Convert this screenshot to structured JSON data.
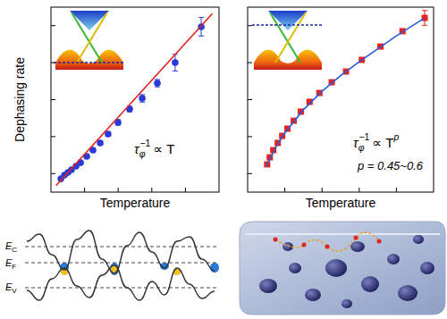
{
  "chart_data": [
    {
      "type": "scatter",
      "y_label": "Dephasing rate",
      "x_label": "Temperature",
      "xlim": [
        0,
        10
      ],
      "ylim": [
        0,
        10
      ],
      "xticks": [
        2,
        4,
        6,
        8
      ],
      "yticks": [
        1,
        3,
        5,
        7,
        9
      ],
      "tick_labels": false,
      "annotations": [
        {
          "symbol": "τ",
          "subscript": "φ",
          "superscript": "−1",
          "relation": "∝ T"
        }
      ],
      "series": [
        {
          "type": "scatter",
          "marker": "circle",
          "color": "#2a3ad8",
          "x": [
            0.59,
            0.8,
            1.01,
            1.22,
            1.49,
            1.76,
            2.13,
            2.5,
            2.93,
            3.4,
            3.99,
            4.68,
            5.43,
            6.33,
            7.39,
            8.94
          ],
          "values": [
            0.72,
            0.92,
            1.06,
            1.21,
            1.4,
            1.59,
            1.93,
            2.27,
            2.66,
            3.14,
            3.77,
            4.49,
            5.07,
            5.89,
            7.0,
            8.94
          ],
          "errors": [
            0.05,
            0.05,
            0.05,
            0.05,
            0.08,
            0.08,
            0.1,
            0.1,
            0.12,
            0.12,
            0.15,
            0.15,
            0.2,
            0.2,
            0.45,
            0.5
          ]
        },
        {
          "type": "line",
          "line_style": "solid",
          "color": "#e0201c",
          "x": [
            0.3,
            9.6
          ],
          "values": [
            0.35,
            9.65
          ]
        }
      ]
    },
    {
      "type": "scatter",
      "x_label": "Temperature",
      "xlim": [
        0,
        10
      ],
      "ylim": [
        0,
        10
      ],
      "xticks": [
        2,
        4,
        6,
        8
      ],
      "yticks": [
        1,
        3,
        5,
        7,
        9
      ],
      "tick_labels": false,
      "annotations": [
        {
          "symbol": "τ",
          "subscript": "φ",
          "superscript": "−1",
          "relation": "∝ T",
          "exponent": "p"
        },
        {
          "text": "p = 0.45~0.6"
        }
      ],
      "series": [
        {
          "type": "scatter",
          "marker": "square",
          "color": "#e8231e",
          "x": [
            1.05,
            1.19,
            1.38,
            1.62,
            1.86,
            2.14,
            2.48,
            2.86,
            3.33,
            3.86,
            4.52,
            5.29,
            6.14,
            7.14,
            8.33,
            9.52
          ],
          "values": [
            1.5,
            1.88,
            2.27,
            2.66,
            3.04,
            3.43,
            3.86,
            4.35,
            4.88,
            5.36,
            5.94,
            6.52,
            7.15,
            7.87,
            8.7,
            9.42
          ],
          "errors": [
            0.05,
            0.05,
            0.05,
            0.05,
            0.05,
            0.05,
            0.05,
            0.05,
            0.05,
            0.05,
            0.05,
            0.05,
            0.05,
            0.05,
            0.05,
            0.4
          ]
        },
        {
          "type": "line",
          "line_style": "solid",
          "color": "#2a5ad8",
          "x": [
            1.0,
            1.5,
            2.0,
            3.0,
            4.0,
            5.0,
            6.0,
            7.0,
            8.0,
            9.5
          ],
          "values": [
            1.4,
            2.4,
            3.2,
            4.45,
            5.45,
            6.3,
            7.05,
            7.75,
            8.45,
            9.4
          ]
        }
      ]
    }
  ],
  "band_diagram": {
    "levels": [
      {
        "symbol": "E",
        "subscript": "C"
      },
      {
        "symbol": "E",
        "subscript": "F"
      },
      {
        "symbol": "E",
        "subscript": "V"
      }
    ]
  }
}
